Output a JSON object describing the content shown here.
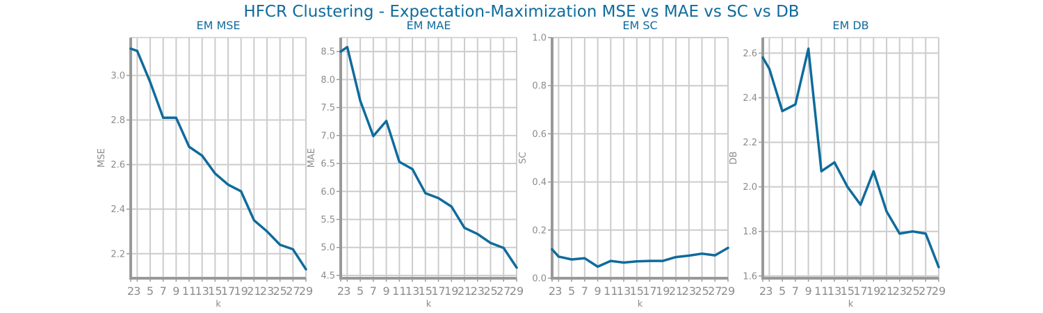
{
  "suptitle": "HFCR Clustering - Expectation-Maximization MSE vs MAE vs SC vs DB",
  "colors": {
    "line": "#0f6b9c",
    "grid": "#cccccc",
    "axis": "#999999",
    "tick": "#8c8c8c",
    "title": "#0f6b9c"
  },
  "chart_data": [
    {
      "type": "line",
      "title": "EM MSE",
      "xlabel": "k",
      "ylabel": "MSE",
      "x": [
        2,
        3,
        5,
        7,
        9,
        11,
        13,
        15,
        17,
        19,
        21,
        23,
        25,
        27,
        29
      ],
      "xticks": [
        2,
        3,
        5,
        7,
        9,
        11,
        13,
        15,
        17,
        19,
        21,
        23,
        25,
        27,
        29
      ],
      "xlim": [
        2,
        29
      ],
      "ylim": [
        2.09,
        3.17
      ],
      "yticks": [
        2.2,
        2.4,
        2.6,
        2.8,
        3.0
      ],
      "ytick_labels": [
        "2.2",
        "2.4",
        "2.6",
        "2.8",
        "3.0"
      ],
      "grid": true,
      "series": [
        {
          "values": [
            3.12,
            3.11,
            2.97,
            2.81,
            2.81,
            2.68,
            2.64,
            2.56,
            2.51,
            2.48,
            2.35,
            2.3,
            2.24,
            2.22,
            2.13
          ]
        }
      ]
    },
    {
      "type": "line",
      "title": "EM MAE",
      "xlabel": "k",
      "ylabel": "MAE",
      "x": [
        2,
        3,
        5,
        7,
        9,
        11,
        13,
        15,
        17,
        19,
        21,
        23,
        25,
        27,
        29
      ],
      "xticks": [
        2,
        3,
        5,
        7,
        9,
        11,
        13,
        15,
        17,
        19,
        21,
        23,
        25,
        27,
        29
      ],
      "xlim": [
        2,
        29
      ],
      "ylim": [
        4.45,
        8.75
      ],
      "yticks": [
        4.5,
        5.0,
        5.5,
        6.0,
        6.5,
        7.0,
        7.5,
        8.0,
        8.5
      ],
      "ytick_labels": [
        "4.5",
        "5.0",
        "5.5",
        "6.0",
        "6.5",
        "7.0",
        "7.5",
        "8.0",
        "8.5"
      ],
      "grid": true,
      "series": [
        {
          "values": [
            8.5,
            8.58,
            7.62,
            6.99,
            7.26,
            6.53,
            6.4,
            5.97,
            5.88,
            5.73,
            5.35,
            5.24,
            5.08,
            4.99,
            4.64
          ]
        }
      ]
    },
    {
      "type": "line",
      "title": "EM SC",
      "xlabel": "k",
      "ylabel": "SC",
      "x": [
        2,
        3,
        5,
        7,
        9,
        11,
        13,
        15,
        17,
        19,
        21,
        23,
        25,
        27,
        29
      ],
      "xticks": [
        2,
        3,
        5,
        7,
        9,
        11,
        13,
        15,
        17,
        19,
        21,
        23,
        25,
        27,
        29
      ],
      "xlim": [
        2,
        29
      ],
      "ylim": [
        0,
        1
      ],
      "yticks": [
        0.0,
        0.2,
        0.4,
        0.6,
        0.8,
        1.0
      ],
      "ytick_labels": [
        "0.0",
        "0.2",
        "0.4",
        "0.6",
        "0.8",
        "1.0"
      ],
      "grid": true,
      "series": [
        {
          "values": [
            0.12,
            0.09,
            0.078,
            0.083,
            0.048,
            0.072,
            0.065,
            0.07,
            0.072,
            0.072,
            0.088,
            0.094,
            0.102,
            0.095,
            0.126
          ]
        }
      ]
    },
    {
      "type": "line",
      "title": "EM DB",
      "xlabel": "k",
      "ylabel": "DB",
      "x": [
        2,
        3,
        5,
        7,
        9,
        11,
        13,
        15,
        17,
        19,
        21,
        23,
        25,
        27,
        29
      ],
      "xticks": [
        2,
        3,
        5,
        7,
        9,
        11,
        13,
        15,
        17,
        19,
        21,
        23,
        25,
        27,
        29
      ],
      "xlim": [
        2,
        29
      ],
      "ylim": [
        1.59,
        2.67
      ],
      "yticks": [
        1.6,
        1.8,
        2.0,
        2.2,
        2.4,
        2.6
      ],
      "ytick_labels": [
        "1.6",
        "1.8",
        "2.0",
        "2.2",
        "2.4",
        "2.6"
      ],
      "grid": true,
      "series": [
        {
          "values": [
            2.58,
            2.53,
            2.34,
            2.37,
            2.62,
            2.07,
            2.11,
            2.0,
            1.92,
            2.07,
            1.89,
            1.79,
            1.8,
            1.79,
            1.64
          ]
        }
      ]
    }
  ]
}
